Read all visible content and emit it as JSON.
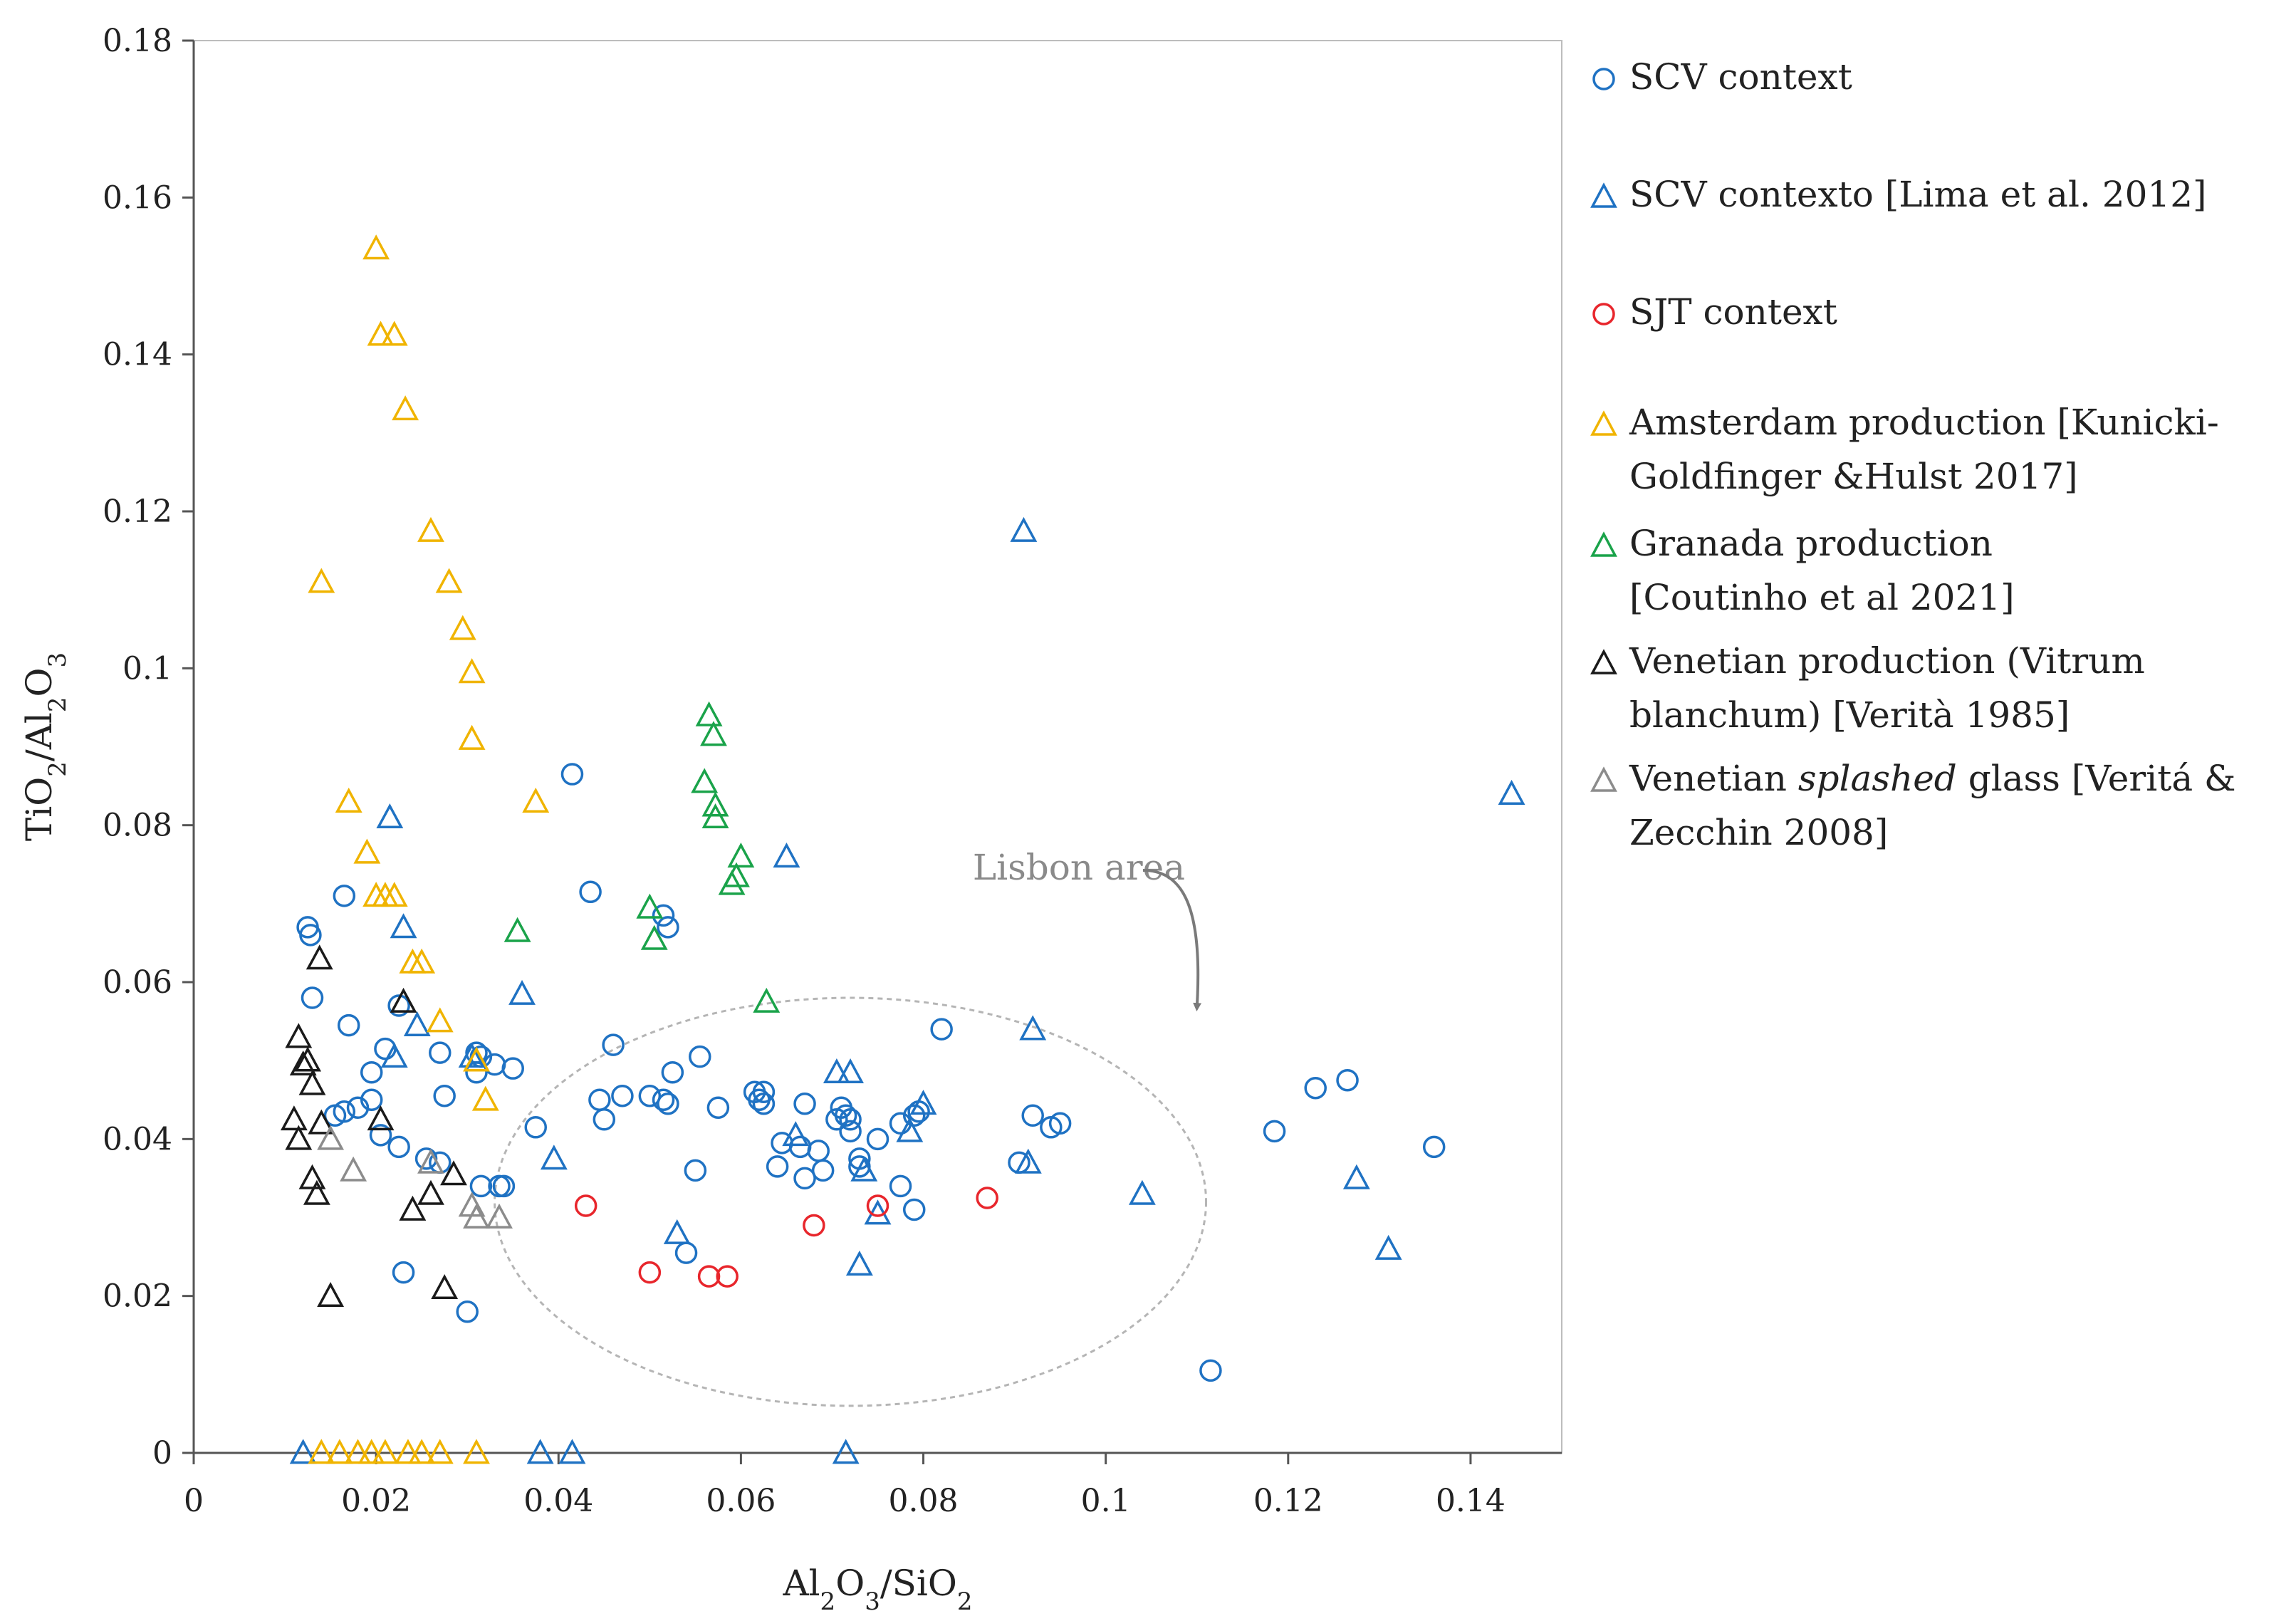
{
  "chart_data": {
    "type": "scatter",
    "title": "",
    "xlabel": {
      "prefix": "Al",
      "sub1": "2",
      "mid": "O",
      "sub2": "3",
      "suffix": "/SiO",
      "sub3": "2"
    },
    "ylabel": {
      "prefix": "TiO",
      "sub1": "2",
      "mid": "/Al",
      "sub2": "2",
      "tail": "O",
      "sub3": "3"
    },
    "xlim": [
      0,
      0.15
    ],
    "ylim": [
      0,
      0.18
    ],
    "xticks": [
      0,
      0.02,
      0.04,
      0.06,
      0.08,
      0.1,
      0.12,
      0.14
    ],
    "xtick_labels": [
      "0",
      "0.02",
      "0.04",
      "0.06",
      "0.08",
      "0.1",
      "0.12",
      "0.14"
    ],
    "yticks": [
      0,
      0.02,
      0.04,
      0.06,
      0.08,
      0.1,
      0.12,
      0.14,
      0.16,
      0.18
    ],
    "ytick_labels": [
      "0",
      "0.02",
      "0.04",
      "0.06",
      "0.08",
      "0.1",
      "0.12",
      "0.14",
      "0.16",
      "0.18"
    ],
    "grid": false,
    "legend_position": "right",
    "annotation": {
      "text": "Lisbon area",
      "ellipse_center": [
        0.072,
        0.032
      ],
      "ellipse_radius": [
        0.039,
        0.026
      ],
      "arrow_to": [
        0.11,
        0.055
      ]
    },
    "series": [
      {
        "name": "SCV context",
        "marker": "circle",
        "color": "#1f72c3",
        "legend_lines": [
          [
            {
              "t": "SCV context"
            }
          ]
        ],
        "points": [
          [
            0.0125,
            0.067
          ],
          [
            0.0128,
            0.066
          ],
          [
            0.0165,
            0.071
          ],
          [
            0.013,
            0.058
          ],
          [
            0.017,
            0.0545
          ],
          [
            0.021,
            0.0515
          ],
          [
            0.0225,
            0.057
          ],
          [
            0.0195,
            0.0485
          ],
          [
            0.0155,
            0.043
          ],
          [
            0.0165,
            0.0435
          ],
          [
            0.018,
            0.044
          ],
          [
            0.0195,
            0.045
          ],
          [
            0.0205,
            0.0405
          ],
          [
            0.0225,
            0.039
          ],
          [
            0.027,
            0.051
          ],
          [
            0.0275,
            0.0455
          ],
          [
            0.0255,
            0.0375
          ],
          [
            0.027,
            0.037
          ],
          [
            0.031,
            0.051
          ],
          [
            0.0315,
            0.0505
          ],
          [
            0.031,
            0.0485
          ],
          [
            0.033,
            0.0495
          ],
          [
            0.035,
            0.049
          ],
          [
            0.0315,
            0.034
          ],
          [
            0.0335,
            0.034
          ],
          [
            0.034,
            0.034
          ],
          [
            0.0375,
            0.0415
          ],
          [
            0.023,
            0.023
          ],
          [
            0.03,
            0.018
          ],
          [
            0.0415,
            0.0865
          ],
          [
            0.0435,
            0.0715
          ],
          [
            0.0445,
            0.045
          ],
          [
            0.045,
            0.0425
          ],
          [
            0.046,
            0.052
          ],
          [
            0.047,
            0.0455
          ],
          [
            0.05,
            0.0455
          ],
          [
            0.0515,
            0.045
          ],
          [
            0.052,
            0.0445
          ],
          [
            0.0525,
            0.0485
          ],
          [
            0.0515,
            0.0685
          ],
          [
            0.052,
            0.067
          ],
          [
            0.0555,
            0.0505
          ],
          [
            0.055,
            0.036
          ],
          [
            0.054,
            0.0255
          ],
          [
            0.0575,
            0.044
          ],
          [
            0.0615,
            0.046
          ],
          [
            0.062,
            0.045
          ],
          [
            0.0625,
            0.046
          ],
          [
            0.0625,
            0.0445
          ],
          [
            0.0645,
            0.0395
          ],
          [
            0.064,
            0.0365
          ],
          [
            0.0665,
            0.039
          ],
          [
            0.067,
            0.0445
          ],
          [
            0.067,
            0.035
          ],
          [
            0.0685,
            0.0385
          ],
          [
            0.069,
            0.036
          ],
          [
            0.0705,
            0.0425
          ],
          [
            0.071,
            0.044
          ],
          [
            0.0715,
            0.043
          ],
          [
            0.072,
            0.0425
          ],
          [
            0.072,
            0.041
          ],
          [
            0.073,
            0.0365
          ],
          [
            0.073,
            0.0375
          ],
          [
            0.075,
            0.04
          ],
          [
            0.0775,
            0.034
          ],
          [
            0.079,
            0.043
          ],
          [
            0.0795,
            0.0435
          ],
          [
            0.079,
            0.031
          ],
          [
            0.0775,
            0.042
          ],
          [
            0.082,
            0.054
          ],
          [
            0.0905,
            0.037
          ],
          [
            0.092,
            0.043
          ],
          [
            0.094,
            0.0415
          ],
          [
            0.095,
            0.042
          ],
          [
            0.1115,
            0.0105
          ],
          [
            0.1185,
            0.041
          ],
          [
            0.123,
            0.0465
          ],
          [
            0.1265,
            0.0475
          ],
          [
            0.136,
            0.039
          ]
        ]
      },
      {
        "name": "SCV contexto [Lima et al. 2012]",
        "marker": "triangle",
        "color": "#1f72c3",
        "legend_lines": [
          [
            {
              "t": "SCV contexto  [Lima et al. 2012]"
            }
          ]
        ],
        "points": [
          [
            0.012,
            0.0
          ],
          [
            0.0215,
            0.081
          ],
          [
            0.023,
            0.067
          ],
          [
            0.0245,
            0.0545
          ],
          [
            0.022,
            0.0505
          ],
          [
            0.0305,
            0.0505
          ],
          [
            0.036,
            0.0585
          ],
          [
            0.0395,
            0.0375
          ],
          [
            0.038,
            0.0
          ],
          [
            0.0415,
            0.0
          ],
          [
            0.053,
            0.028
          ],
          [
            0.065,
            0.076
          ],
          [
            0.066,
            0.0405
          ],
          [
            0.0705,
            0.0485
          ],
          [
            0.072,
            0.0485
          ],
          [
            0.0735,
            0.036
          ],
          [
            0.073,
            0.024
          ],
          [
            0.075,
            0.0305
          ],
          [
            0.0785,
            0.041
          ],
          [
            0.08,
            0.0445
          ],
          [
            0.0715,
            0.0
          ],
          [
            0.091,
            0.1175
          ],
          [
            0.092,
            0.054
          ],
          [
            0.0915,
            0.037
          ],
          [
            0.104,
            0.033
          ],
          [
            0.1275,
            0.035
          ],
          [
            0.131,
            0.026
          ],
          [
            0.1445,
            0.084
          ]
        ]
      },
      {
        "name": "SJT context",
        "marker": "circle",
        "color": "#e8262c",
        "legend_lines": [
          [
            {
              "t": " SJT context"
            }
          ]
        ],
        "points": [
          [
            0.043,
            0.0315
          ],
          [
            0.05,
            0.023
          ],
          [
            0.0565,
            0.0225
          ],
          [
            0.0585,
            0.0225
          ],
          [
            0.068,
            0.029
          ],
          [
            0.075,
            0.0315
          ],
          [
            0.087,
            0.0325
          ]
        ]
      },
      {
        "name": "Amsterdam production [Kunicki-Goldfinger &Hulst 2017]",
        "marker": "triangle",
        "color": "#f0b400",
        "legend_lines": [
          [
            {
              "t": "Amsterdam production [Kunicki-"
            }
          ],
          [
            {
              "t": "Goldfinger &Hulst 2017]"
            }
          ]
        ],
        "points": [
          [
            0.02,
            0.1535
          ],
          [
            0.0205,
            0.1425
          ],
          [
            0.022,
            0.1425
          ],
          [
            0.0232,
            0.133
          ],
          [
            0.014,
            0.111
          ],
          [
            0.026,
            0.1175
          ],
          [
            0.028,
            0.111
          ],
          [
            0.0295,
            0.105
          ],
          [
            0.0305,
            0.0995
          ],
          [
            0.0305,
            0.091
          ],
          [
            0.017,
            0.083
          ],
          [
            0.0375,
            0.083
          ],
          [
            0.019,
            0.0765
          ],
          [
            0.02,
            0.071
          ],
          [
            0.021,
            0.071
          ],
          [
            0.022,
            0.071
          ],
          [
            0.024,
            0.0625
          ],
          [
            0.025,
            0.0625
          ],
          [
            0.027,
            0.055
          ],
          [
            0.031,
            0.05
          ],
          [
            0.032,
            0.045
          ],
          [
            0.014,
            0.0
          ],
          [
            0.016,
            0.0
          ],
          [
            0.018,
            0.0
          ],
          [
            0.0195,
            0.0
          ],
          [
            0.021,
            0.0
          ],
          [
            0.0235,
            0.0
          ],
          [
            0.025,
            0.0
          ],
          [
            0.027,
            0.0
          ],
          [
            0.031,
            0.0
          ]
        ]
      },
      {
        "name": "Granada production [Coutinho et al 2021]",
        "marker": "triangle",
        "color": "#1aa34a",
        "legend_lines": [
          [
            {
              "t": "Granada production"
            }
          ],
          [
            {
              "t": "[Coutinho et al 2021]"
            }
          ]
        ],
        "points": [
          [
            0.0565,
            0.094
          ],
          [
            0.057,
            0.0915
          ],
          [
            0.056,
            0.0855
          ],
          [
            0.0572,
            0.0825
          ],
          [
            0.0572,
            0.081
          ],
          [
            0.06,
            0.076
          ],
          [
            0.0595,
            0.0735
          ],
          [
            0.059,
            0.0725
          ],
          [
            0.05,
            0.0695
          ],
          [
            0.0505,
            0.0655
          ],
          [
            0.0355,
            0.0665
          ],
          [
            0.0628,
            0.0575
          ]
        ]
      },
      {
        "name": "Venetian production (Vitrum blanchum) [Verità 1985]",
        "marker": "triangle",
        "color": "#1a1a1a",
        "legend_lines": [
          [
            {
              "t": "Venetian production (Vitrum"
            }
          ],
          [
            {
              "t": "blanchum) [Verità 1985]"
            }
          ]
        ],
        "points": [
          [
            0.0138,
            0.063
          ],
          [
            0.0115,
            0.053
          ],
          [
            0.012,
            0.0495
          ],
          [
            0.0125,
            0.05
          ],
          [
            0.013,
            0.047
          ],
          [
            0.011,
            0.0425
          ],
          [
            0.0115,
            0.04
          ],
          [
            0.014,
            0.042
          ],
          [
            0.013,
            0.035
          ],
          [
            0.0135,
            0.033
          ],
          [
            0.015,
            0.02
          ],
          [
            0.023,
            0.0575
          ],
          [
            0.0205,
            0.0425
          ],
          [
            0.026,
            0.033
          ],
          [
            0.024,
            0.031
          ],
          [
            0.0285,
            0.0355
          ],
          [
            0.0275,
            0.021
          ]
        ]
      },
      {
        "name": "Venetian splashed glass [Veritá & Zecchin 2008]",
        "marker": "triangle",
        "color": "#8c8c8c",
        "legend_lines": [
          [
            {
              "t": "Venetian "
            },
            {
              "t": "splashed",
              "i": true
            },
            {
              "t": " glass [Veritá &"
            }
          ],
          [
            {
              "t": "Zecchin 2008]"
            }
          ]
        ],
        "points": [
          [
            0.015,
            0.04
          ],
          [
            0.0175,
            0.036
          ],
          [
            0.026,
            0.037
          ],
          [
            0.0305,
            0.0315
          ],
          [
            0.031,
            0.03
          ],
          [
            0.0335,
            0.03
          ]
        ]
      }
    ]
  }
}
